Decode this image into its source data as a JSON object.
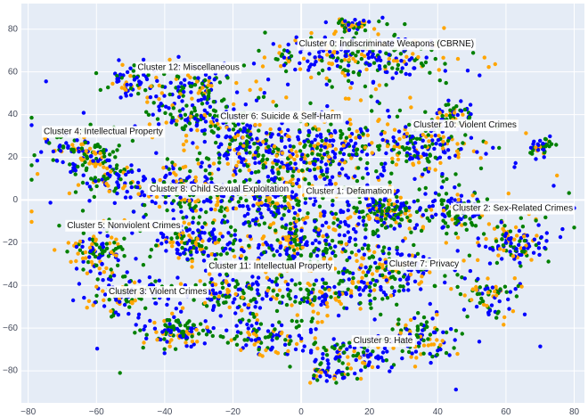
{
  "chart_data": {
    "type": "scatter",
    "title": "",
    "xlabel": "",
    "ylabel": "",
    "xlim": [
      -82,
      83
    ],
    "ylim": [
      -95,
      92
    ],
    "x_ticks": [
      -80,
      -60,
      -40,
      -20,
      0,
      20,
      40,
      60,
      80
    ],
    "y_ticks": [
      -80,
      -60,
      -40,
      -20,
      0,
      20,
      40,
      60,
      80
    ],
    "x_tick_labels": [
      "−80",
      "−60",
      "−40",
      "−20",
      "0",
      "20",
      "40",
      "60",
      "80"
    ],
    "y_tick_labels": [
      "−80",
      "−60",
      "−40",
      "−20",
      "0",
      "20",
      "40",
      "60",
      "80"
    ],
    "grid": true,
    "zero_lines": true,
    "legend": "none",
    "colors": {
      "background": "#e5ecf6",
      "grid": "#ffffff",
      "series": [
        "#0000ff",
        "#008000",
        "#ffa500"
      ]
    },
    "clusters": [
      {
        "label": "Cluster 0: Indiscriminate Weapons (CBRNE)",
        "x": 25,
        "y": 73
      },
      {
        "label": "Cluster 1: Defamation",
        "x": 14,
        "y": 4
      },
      {
        "label": "Cluster 2: Sex-Related Crimes",
        "x": 62,
        "y": -4
      },
      {
        "label": "Cluster 3: Violent Crimes",
        "x": -42,
        "y": -43
      },
      {
        "label": "Cluster 4: Intellectual Property",
        "x": -58,
        "y": 32
      },
      {
        "label": "Cluster 5: Nonviolent Crimes",
        "x": -52,
        "y": -12
      },
      {
        "label": "Cluster 6: Suicide & Self-Harm",
        "x": -6,
        "y": 39
      },
      {
        "label": "Cluster 7: Privacy",
        "x": 36,
        "y": -30
      },
      {
        "label": "Cluster 8: Child Sexual Exploitation",
        "x": -24,
        "y": 5
      },
      {
        "label": "Cluster 9: Hate",
        "x": 24,
        "y": -66
      },
      {
        "label": "Cluster 10: Violent Crimes",
        "x": 48,
        "y": 35
      },
      {
        "label": "Cluster 11: Intellectual Property",
        "x": -9,
        "y": -31
      },
      {
        "label": "Cluster 12: Miscellaneous",
        "x": -33,
        "y": 62
      }
    ],
    "blobs": [
      {
        "x": 18,
        "y": 68,
        "rx": 28,
        "ry": 12,
        "n": 260
      },
      {
        "x": 15,
        "y": 82,
        "rx": 5,
        "ry": 3,
        "n": 40
      },
      {
        "x": -50,
        "y": 55,
        "rx": 7,
        "ry": 6,
        "n": 55
      },
      {
        "x": -33,
        "y": 52,
        "rx": 14,
        "ry": 10,
        "n": 110
      },
      {
        "x": -30,
        "y": 38,
        "rx": 14,
        "ry": 10,
        "n": 110
      },
      {
        "x": -65,
        "y": 22,
        "rx": 12,
        "ry": 10,
        "n": 120
      },
      {
        "x": -55,
        "y": 10,
        "rx": 10,
        "ry": 10,
        "n": 70
      },
      {
        "x": -15,
        "y": 25,
        "rx": 14,
        "ry": 12,
        "n": 150
      },
      {
        "x": 8,
        "y": 25,
        "rx": 14,
        "ry": 14,
        "n": 170
      },
      {
        "x": 35,
        "y": 25,
        "rx": 16,
        "ry": 14,
        "n": 160
      },
      {
        "x": 45,
        "y": 40,
        "rx": 6,
        "ry": 6,
        "n": 45
      },
      {
        "x": 70,
        "y": 25,
        "rx": 4,
        "ry": 4,
        "n": 35
      },
      {
        "x": -35,
        "y": 5,
        "rx": 12,
        "ry": 10,
        "n": 110
      },
      {
        "x": -10,
        "y": 0,
        "rx": 14,
        "ry": 10,
        "n": 140
      },
      {
        "x": 25,
        "y": -5,
        "rx": 10,
        "ry": 8,
        "n": 140
      },
      {
        "x": 45,
        "y": -5,
        "rx": 12,
        "ry": 10,
        "n": 110
      },
      {
        "x": 62,
        "y": -20,
        "rx": 10,
        "ry": 10,
        "n": 110
      },
      {
        "x": -60,
        "y": -25,
        "rx": 10,
        "ry": 10,
        "n": 110
      },
      {
        "x": -30,
        "y": -20,
        "rx": 12,
        "ry": 12,
        "n": 130
      },
      {
        "x": 0,
        "y": -20,
        "rx": 14,
        "ry": 12,
        "n": 130
      },
      {
        "x": 25,
        "y": -35,
        "rx": 14,
        "ry": 12,
        "n": 140
      },
      {
        "x": -50,
        "y": -45,
        "rx": 12,
        "ry": 10,
        "n": 110
      },
      {
        "x": -20,
        "y": -45,
        "rx": 14,
        "ry": 10,
        "n": 120
      },
      {
        "x": 5,
        "y": -45,
        "rx": 12,
        "ry": 10,
        "n": 90
      },
      {
        "x": -35,
        "y": -62,
        "rx": 10,
        "ry": 8,
        "n": 110
      },
      {
        "x": -10,
        "y": -65,
        "rx": 12,
        "ry": 8,
        "n": 90
      },
      {
        "x": 15,
        "y": -72,
        "rx": 14,
        "ry": 8,
        "n": 110
      },
      {
        "x": 35,
        "y": -65,
        "rx": 10,
        "ry": 10,
        "n": 100
      },
      {
        "x": 8,
        "y": -82,
        "rx": 6,
        "ry": 4,
        "n": 35
      },
      {
        "x": 55,
        "y": -45,
        "rx": 10,
        "ry": 10,
        "n": 70
      },
      {
        "x": 0,
        "y": 0,
        "rx": 60,
        "ry": 55,
        "n": 700
      }
    ],
    "color_weights": [
      0.42,
      0.34,
      0.24
    ]
  }
}
